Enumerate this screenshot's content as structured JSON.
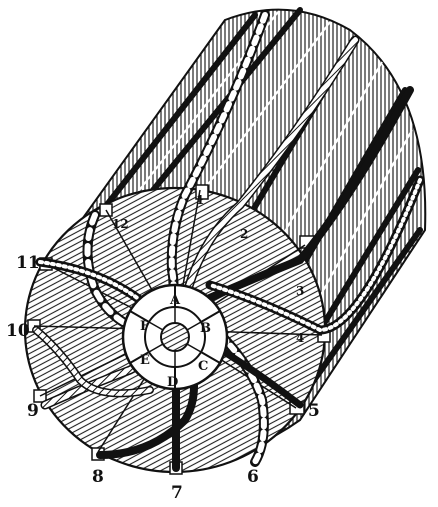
{
  "figure": {
    "numbered_labels": [
      "1",
      "2",
      "3",
      "4",
      "5",
      "6",
      "7",
      "8",
      "9",
      "10",
      "11",
      "12"
    ],
    "segment_labels": [
      "A",
      "B",
      "C",
      "D",
      "E",
      "F"
    ],
    "colors": {
      "ink": "#111111",
      "paper": "#ffffff"
    }
  }
}
